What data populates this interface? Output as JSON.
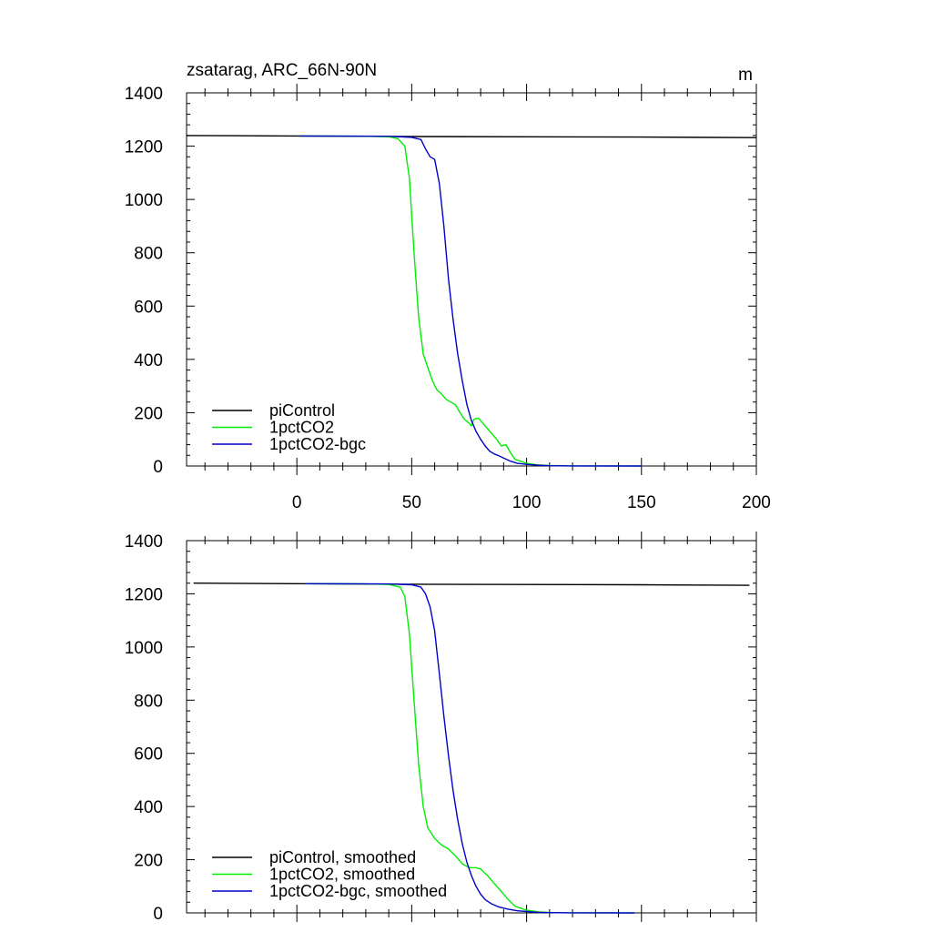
{
  "chart_data": [
    {
      "type": "line",
      "title": "zsatarag, ARC_66N-90N",
      "units": "m",
      "xlim": [
        -48,
        200
      ],
      "ylim": [
        0,
        1400
      ],
      "xticks": [
        0,
        50,
        100,
        150,
        200
      ],
      "yticks": [
        0,
        200,
        400,
        600,
        800,
        1000,
        1200,
        1400
      ],
      "grid": false,
      "legend_position": "bottom-left",
      "series": [
        {
          "name": "piControl",
          "color": "#000000",
          "points": [
            [
              -48,
              1240
            ],
            [
              0,
              1238
            ],
            [
              50,
              1236
            ],
            [
              100,
              1235
            ],
            [
              150,
              1234
            ],
            [
              200,
              1232
            ]
          ]
        },
        {
          "name": "1pctCO2",
          "color": "#00ee00",
          "points": [
            [
              1,
              1238
            ],
            [
              30,
              1237
            ],
            [
              40,
              1235
            ],
            [
              44,
              1228
            ],
            [
              47,
              1200
            ],
            [
              49,
              1080
            ],
            [
              51,
              800
            ],
            [
              53,
              560
            ],
            [
              55,
              420
            ],
            [
              57,
              370
            ],
            [
              59,
              320
            ],
            [
              61,
              285
            ],
            [
              63,
              270
            ],
            [
              65,
              250
            ],
            [
              67,
              240
            ],
            [
              69,
              230
            ],
            [
              71,
              200
            ],
            [
              73,
              175
            ],
            [
              75,
              160
            ],
            [
              76,
              150
            ],
            [
              77,
              175
            ],
            [
              79,
              180
            ],
            [
              81,
              160
            ],
            [
              83,
              140
            ],
            [
              85,
              120
            ],
            [
              87,
              100
            ],
            [
              89,
              75
            ],
            [
              91,
              80
            ],
            [
              93,
              50
            ],
            [
              95,
              25
            ],
            [
              100,
              10
            ],
            [
              105,
              4
            ],
            [
              110,
              2
            ],
            [
              120,
              0.5
            ],
            [
              150,
              0
            ]
          ]
        },
        {
          "name": "1pctCO2-bgc",
          "color": "#0000cc",
          "points": [
            [
              1,
              1238
            ],
            [
              40,
              1237
            ],
            [
              50,
              1233
            ],
            [
              54,
              1225
            ],
            [
              56,
              1190
            ],
            [
              58,
              1160
            ],
            [
              60,
              1150
            ],
            [
              62,
              1060
            ],
            [
              64,
              900
            ],
            [
              66,
              700
            ],
            [
              68,
              550
            ],
            [
              70,
              420
            ],
            [
              72,
              320
            ],
            [
              74,
              230
            ],
            [
              76,
              170
            ],
            [
              78,
              130
            ],
            [
              80,
              100
            ],
            [
              82,
              75
            ],
            [
              84,
              55
            ],
            [
              86,
              45
            ],
            [
              88,
              38
            ],
            [
              90,
              30
            ],
            [
              93,
              18
            ],
            [
              96,
              10
            ],
            [
              100,
              6
            ],
            [
              105,
              3
            ],
            [
              110,
              1
            ],
            [
              120,
              0.5
            ],
            [
              150,
              0
            ]
          ]
        }
      ]
    },
    {
      "type": "line",
      "title": "",
      "xlim": [
        -48,
        200
      ],
      "ylim": [
        0,
        1400
      ],
      "yticks": [
        0,
        200,
        400,
        600,
        800,
        1000,
        1200,
        1400
      ],
      "grid": false,
      "legend_position": "bottom-left",
      "series": [
        {
          "name": "piControl, smoothed",
          "color": "#000000",
          "points": [
            [
              -45,
              1240
            ],
            [
              0,
              1238
            ],
            [
              50,
              1236
            ],
            [
              100,
              1235
            ],
            [
              150,
              1234
            ],
            [
              197,
              1232
            ]
          ]
        },
        {
          "name": "1pctCO2, smoothed",
          "color": "#00ee00",
          "points": [
            [
              4,
              1238
            ],
            [
              30,
              1237
            ],
            [
              40,
              1235
            ],
            [
              45,
              1225
            ],
            [
              47,
              1190
            ],
            [
              49,
              1050
            ],
            [
              51,
              800
            ],
            [
              53,
              560
            ],
            [
              55,
              400
            ],
            [
              57,
              320
            ],
            [
              60,
              280
            ],
            [
              63,
              255
            ],
            [
              66,
              240
            ],
            [
              69,
              215
            ],
            [
              72,
              185
            ],
            [
              75,
              170
            ],
            [
              78,
              170
            ],
            [
              80,
              165
            ],
            [
              83,
              140
            ],
            [
              86,
              110
            ],
            [
              89,
              80
            ],
            [
              92,
              50
            ],
            [
              95,
              25
            ],
            [
              100,
              10
            ],
            [
              105,
              4
            ],
            [
              110,
              1.5
            ],
            [
              120,
              0.5
            ],
            [
              147,
              0
            ]
          ]
        },
        {
          "name": "1pctCO2-bgc, smoothed",
          "color": "#0000cc",
          "points": [
            [
              4,
              1238
            ],
            [
              40,
              1237
            ],
            [
              50,
              1234
            ],
            [
              54,
              1225
            ],
            [
              56,
              1200
            ],
            [
              58,
              1150
            ],
            [
              60,
              1060
            ],
            [
              62,
              900
            ],
            [
              64,
              740
            ],
            [
              66,
              590
            ],
            [
              68,
              460
            ],
            [
              70,
              350
            ],
            [
              72,
              260
            ],
            [
              74,
              190
            ],
            [
              76,
              140
            ],
            [
              78,
              100
            ],
            [
              80,
              70
            ],
            [
              82,
              50
            ],
            [
              85,
              33
            ],
            [
              88,
              22
            ],
            [
              92,
              14
            ],
            [
              96,
              8
            ],
            [
              100,
              5
            ],
            [
              105,
              2
            ],
            [
              110,
              1
            ],
            [
              120,
              0.3
            ],
            [
              147,
              0
            ]
          ]
        }
      ]
    }
  ]
}
